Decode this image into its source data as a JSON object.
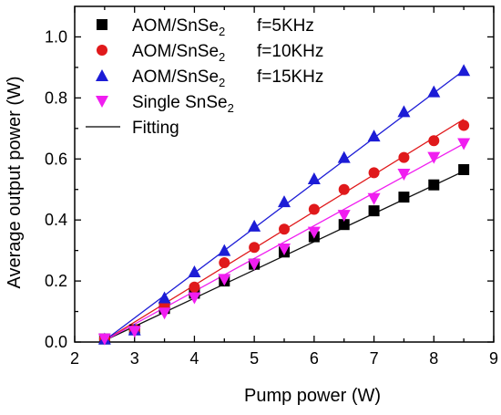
{
  "chart_data": {
    "type": "scatter",
    "xlabel": "Pump  power (W)",
    "ylabel": "Average output power (W)",
    "xlim": [
      2,
      9
    ],
    "ylim": [
      0,
      1.1
    ],
    "xticks": [
      2,
      3,
      4,
      5,
      6,
      7,
      8,
      9
    ],
    "xtick_labels": [
      "2",
      "3",
      "4",
      "5",
      "6",
      "7",
      "8",
      "9"
    ],
    "yticks": [
      0.0,
      0.2,
      0.4,
      0.6,
      0.8,
      1.0
    ],
    "ytick_labels": [
      "0.0",
      "0.2",
      "0.4",
      "0.6",
      "0.8",
      "1.0"
    ],
    "grid": false,
    "legend_position": "top-left",
    "x": [
      2.5,
      3,
      3.5,
      4,
      4.5,
      5,
      5.5,
      6,
      6.5,
      7,
      7.5,
      8,
      8.5
    ],
    "series": [
      {
        "name": "AOM/SnSe",
        "subscript": "2",
        "freq_label": "f=5KHz",
        "marker": "square",
        "color": "#000000",
        "values": [
          0.01,
          0.04,
          0.11,
          0.16,
          0.2,
          0.255,
          0.295,
          0.345,
          0.385,
          0.43,
          0.475,
          0.515,
          0.565
        ],
        "fit": [
          [
            2.5,
            0.005
          ],
          [
            8.5,
            0.56
          ]
        ]
      },
      {
        "name": "AOM/SnSe",
        "subscript": "2",
        "freq_label": "f=10KHz",
        "marker": "circle",
        "color": "#e0191b",
        "values": [
          0.01,
          0.04,
          0.12,
          0.18,
          0.26,
          0.31,
          0.37,
          0.435,
          0.5,
          0.555,
          0.605,
          0.66,
          0.71
        ],
        "fit": [
          [
            2.5,
            0.005
          ],
          [
            8.5,
            0.73
          ]
        ]
      },
      {
        "name": "AOM/SnSe",
        "subscript": "2",
        "freq_label": "f=15KHz",
        "marker": "triangle-up",
        "color": "#1c1cd6",
        "values": [
          0.01,
          0.04,
          0.145,
          0.23,
          0.3,
          0.38,
          0.46,
          0.535,
          0.605,
          0.675,
          0.755,
          0.82,
          0.89
        ],
        "fit": [
          [
            2.5,
            0.005
          ],
          [
            8.5,
            0.89
          ]
        ]
      },
      {
        "name": "Single SnSe",
        "subscript": "2",
        "freq_label": "",
        "marker": "triangle-down",
        "color": "#f01ef0",
        "values": [
          0.01,
          0.035,
          0.095,
          0.145,
          0.205,
          0.255,
          0.305,
          0.36,
          0.415,
          0.47,
          0.55,
          0.605,
          0.65
        ],
        "fit": [
          [
            2.5,
            0.005
          ],
          [
            8.5,
            0.65
          ]
        ]
      }
    ],
    "fitting_legend_label": "Fitting",
    "fitting_color": "#000000"
  }
}
